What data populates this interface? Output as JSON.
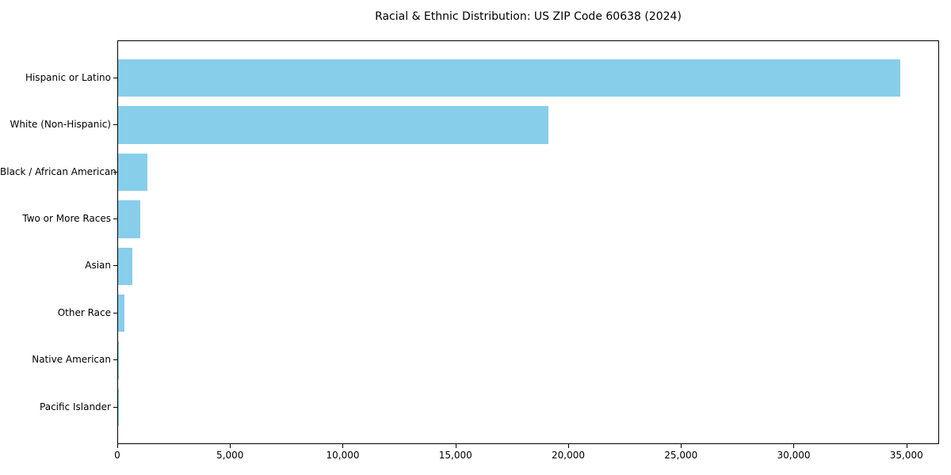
{
  "chart_data": {
    "type": "bar",
    "orientation": "horizontal",
    "title": "Racial & Ethnic Distribution: US ZIP Code 60638 (2024)",
    "categories": [
      "Hispanic or Latino",
      "White (Non-Hispanic)",
      "Black / African American",
      "Two or More Races",
      "Asian",
      "Other Race",
      "Native American",
      "Pacific Islander"
    ],
    "values": [
      34700,
      19100,
      1300,
      1000,
      640,
      290,
      30,
      10
    ],
    "xlabel": "",
    "ylabel": "",
    "xlim": [
      0,
      36450
    ],
    "xticks": [
      0,
      5000,
      10000,
      15000,
      20000,
      25000,
      30000,
      35000
    ],
    "xtick_labels": [
      "0",
      "5,000",
      "10,000",
      "15,000",
      "20,000",
      "25,000",
      "30,000",
      "35,000"
    ],
    "bar_color": "#87CEEB",
    "grid": false,
    "legend": null,
    "background_color": "#ffffff",
    "spine_color": "#000000"
  }
}
